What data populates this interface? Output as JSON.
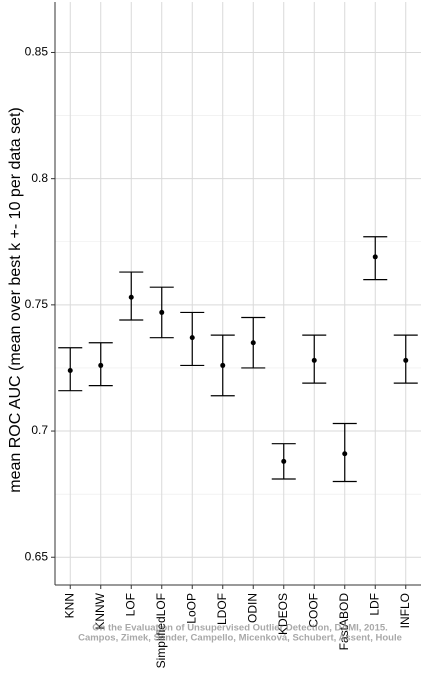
{
  "chart_data": {
    "type": "errorbar",
    "ylabel": "mean ROC AUC (mean over best k +- 10 per data set)",
    "categories": [
      "KNN",
      "KNNW",
      "LOF",
      "SimplifiedLOF",
      "LoOP",
      "LDOF",
      "ODIN",
      "KDEOS",
      "COOF",
      "FastABOD",
      "LDF",
      "INFLO"
    ],
    "values": [
      0.724,
      0.726,
      0.753,
      0.747,
      0.737,
      0.726,
      0.735,
      0.688,
      0.728,
      0.691,
      0.769,
      0.728
    ],
    "lower": [
      0.716,
      0.718,
      0.744,
      0.737,
      0.726,
      0.714,
      0.725,
      0.681,
      0.719,
      0.68,
      0.76,
      0.719
    ],
    "upper": [
      0.733,
      0.735,
      0.763,
      0.757,
      0.747,
      0.738,
      0.745,
      0.695,
      0.738,
      0.703,
      0.777,
      0.738
    ],
    "color": "#000000",
    "ylim": [
      0.639,
      0.87
    ],
    "yticks": [
      0.65,
      0.7,
      0.75,
      0.8,
      0.85
    ],
    "grid": true,
    "annotations": [
      "On the Evaluation of Unsupervised Outlier Detection, DAMI, 2015.",
      "Campos, Zimek, Sander, Campello, Micenková, Schubert, Assent, Houle"
    ]
  }
}
